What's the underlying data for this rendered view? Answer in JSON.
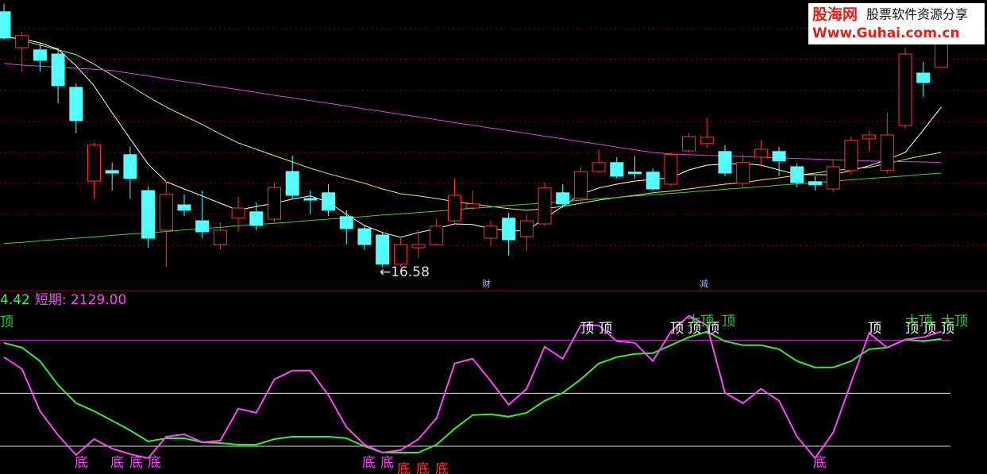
{
  "chart_data": [
    {
      "type": "candlestick",
      "categories": [
        null,
        null,
        null,
        null,
        null,
        null,
        null,
        null,
        null,
        null,
        null,
        null,
        null,
        null,
        null,
        null,
        null,
        null,
        null,
        null,
        null,
        null,
        null,
        null,
        null,
        null,
        null,
        null,
        null,
        null,
        null,
        null,
        null,
        null,
        null,
        null,
        null,
        null,
        null,
        null,
        null,
        null,
        null,
        null,
        null,
        null,
        null,
        null,
        null,
        null,
        null,
        null,
        null
      ],
      "open": [
        24.63,
        23.5,
        23.43,
        23.3,
        22.25,
        19.3,
        19.63,
        20.13,
        19.0,
        17.75,
        18.55,
        18.05,
        17.3,
        18.13,
        18.33,
        18.1,
        19.6,
        18.75,
        18.93,
        18.18,
        17.8,
        17.6,
        16.68,
        17.2,
        17.3,
        18.05,
        18.45,
        17.5,
        18.13,
        17.55,
        17.95,
        18.93,
        18.75,
        19.6,
        19.88,
        19.58,
        19.58,
        19.2,
        20.25,
        20.48,
        20.23,
        19.23,
        20.05,
        20.23,
        19.75,
        19.28,
        19.05,
        19.63,
        20.63,
        19.63,
        21.05,
        22.7,
        22.88
      ],
      "high": [
        24.88,
        24.0,
        23.63,
        23.5,
        22.38,
        20.5,
        19.88,
        20.38,
        19.13,
        19.3,
        18.88,
        19.0,
        18.0,
        18.8,
        18.63,
        19.25,
        20.1,
        19.0,
        19.2,
        18.38,
        17.93,
        17.68,
        17.5,
        17.75,
        18.13,
        19.38,
        19.0,
        18.05,
        18.3,
        18.25,
        19.25,
        19.2,
        19.75,
        20.3,
        20.05,
        20.08,
        19.7,
        20.2,
        20.8,
        21.3,
        20.43,
        20.13,
        20.6,
        20.38,
        19.85,
        19.45,
        20.0,
        20.7,
        20.88,
        21.45,
        23.5,
        23.05,
        24.0
      ],
      "low": [
        23.75,
        22.75,
        22.75,
        21.75,
        20.8,
        18.75,
        19.0,
        18.75,
        17.2,
        16.6,
        18.2,
        17.5,
        17.13,
        17.7,
        17.75,
        18.0,
        18.75,
        18.25,
        18.2,
        17.3,
        17.13,
        16.58,
        16.6,
        16.88,
        17.25,
        18.0,
        18.38,
        17.25,
        16.95,
        17.1,
        17.88,
        18.45,
        18.63,
        19.55,
        19.38,
        19.38,
        19.0,
        19.13,
        20.2,
        20.35,
        19.45,
        19.05,
        19.75,
        19.45,
        19.1,
        19.0,
        18.95,
        19.5,
        20.25,
        19.55,
        20.95,
        21.95,
        22.88
      ],
      "close": [
        23.8,
        23.88,
        23.1,
        22.3,
        21.2,
        20.43,
        19.55,
        19.38,
        17.5,
        18.88,
        18.38,
        17.7,
        17.75,
        18.45,
        17.9,
        19.1,
        18.85,
        18.7,
        18.38,
        17.8,
        17.3,
        16.68,
        17.3,
        17.3,
        17.88,
        18.85,
        18.58,
        17.88,
        17.45,
        18.05,
        19.08,
        18.58,
        19.6,
        19.88,
        19.45,
        19.53,
        19.05,
        20.13,
        20.7,
        20.68,
        19.55,
        19.88,
        20.3,
        19.93,
        19.25,
        19.18,
        19.75,
        20.58,
        20.75,
        20.75,
        23.3,
        22.4,
        23.63
      ],
      "up_color": "#ff3232",
      "down_color": "#54ffff",
      "series": [
        {
          "color": "#ffffff",
          "values": [
            23.83,
            23.78,
            23.65,
            23.45,
            22.93,
            22.3,
            21.45,
            20.63,
            19.83,
            19.28,
            19.05,
            18.83,
            18.6,
            18.38,
            18.5,
            18.6,
            18.73,
            18.83,
            18.63,
            18.25,
            17.9,
            17.68,
            17.53,
            17.68,
            17.8,
            17.95,
            17.93,
            17.8,
            17.73,
            17.73,
            18.13,
            18.5,
            18.88,
            19.08,
            19.2,
            19.3,
            19.35,
            19.4,
            19.65,
            19.8,
            19.83,
            19.85,
            19.8,
            19.65,
            19.5,
            19.5,
            19.5,
            19.63,
            19.78,
            19.98,
            20.2,
            20.9,
            21.63
          ]
        },
        {
          "color": "#e8e870",
          "values": [
            23.88,
            23.73,
            23.58,
            23.43,
            23.28,
            22.98,
            22.63,
            22.3,
            21.95,
            21.63,
            21.35,
            21.08,
            20.78,
            20.5,
            20.3,
            20.1,
            19.9,
            19.7,
            19.53,
            19.38,
            19.23,
            19.05,
            18.9,
            18.83,
            18.75,
            18.65,
            18.58,
            18.5,
            18.43,
            18.38,
            18.43,
            18.5,
            18.6,
            18.7,
            18.78,
            18.85,
            18.93,
            18.98,
            19.05,
            19.13,
            19.2,
            19.25,
            19.33,
            19.4,
            19.48,
            19.55,
            19.63,
            19.68,
            19.73,
            19.85,
            19.98,
            20.1,
            20.2
          ]
        },
        {
          "color": "#dd44dd",
          "values": [
            23.0,
            22.95,
            22.92,
            22.88,
            22.85,
            22.82,
            22.78,
            22.69,
            22.61,
            22.52,
            22.43,
            22.35,
            22.26,
            22.18,
            22.09,
            22.0,
            21.92,
            21.83,
            21.75,
            21.66,
            21.57,
            21.49,
            21.4,
            21.32,
            21.23,
            21.14,
            21.06,
            20.97,
            20.89,
            20.8,
            20.71,
            20.63,
            20.54,
            20.46,
            20.37,
            20.28,
            20.2,
            20.15,
            20.13,
            20.11,
            20.09,
            20.07,
            20.05,
            20.03,
            20.01,
            19.99,
            19.97,
            19.95,
            19.93,
            19.92,
            19.91,
            19.9,
            19.88
          ]
        },
        {
          "color": "#44cc44",
          "values": [
            17.33,
            17.37,
            17.42,
            17.46,
            17.5,
            17.54,
            17.59,
            17.63,
            17.67,
            17.71,
            17.76,
            17.8,
            17.84,
            17.89,
            17.93,
            17.97,
            18.01,
            18.06,
            18.1,
            18.14,
            18.18,
            18.23,
            18.27,
            18.31,
            18.35,
            18.4,
            18.44,
            18.48,
            18.53,
            18.57,
            18.61,
            18.65,
            18.7,
            18.74,
            18.78,
            18.83,
            18.87,
            18.91,
            18.95,
            19.0,
            19.04,
            19.08,
            19.12,
            19.17,
            19.21,
            19.25,
            19.29,
            19.34,
            19.38,
            19.42,
            19.46,
            19.51,
            19.55
          ]
        }
      ],
      "ylim": [
        16,
        25
      ],
      "gridlines": [
        24.1,
        23.13,
        22.15,
        21.18,
        20.2,
        19.23,
        18.25,
        17.28
      ],
      "grid_color": "#a00000",
      "annotations": [
        {
          "text": "←16.58",
          "color": "#e0e0e0"
        },
        {
          "text": "财",
          "color": "#a8b8ff"
        },
        {
          "text": "减",
          "color": "#a8b8ff"
        }
      ]
    },
    {
      "type": "line",
      "header": [
        {
          "text": "4.42",
          "color": "#33ff33"
        },
        {
          "text": "短期: 2129.00",
          "color": "#ff44ff"
        }
      ],
      "series": [
        {
          "color": "#ff44ff",
          "values": [
            77.3,
            68.3,
            36.5,
            18.4,
            3.4,
            15.4,
            8.2,
            4.0,
            1.0,
            17.2,
            19.0,
            13.0,
            14.2,
            38.3,
            35.3,
            60.5,
            67.1,
            67.1,
            48.5,
            24.4,
            11.2,
            5.2,
            7.0,
            15.4,
            31.1,
            72.5,
            76.1,
            59.3,
            41.3,
            53.3,
            85.1,
            76.1,
            101.4,
            101.4,
            89.4,
            88.1,
            74.3,
            96.6,
            108.6,
            101.4,
            50.3,
            42.5,
            53.3,
            44.3,
            17.2,
            1.0,
            20.2,
            58.1,
            95.4,
            84.5,
            90.6,
            92.4,
            96.6
          ]
        },
        {
          "color": "#33ee33",
          "values": [
            88.1,
            84.5,
            74.3,
            56.3,
            42.5,
            36.5,
            29.3,
            22.0,
            13.6,
            16.0,
            16.0,
            13.0,
            12.4,
            11.2,
            11.2,
            15.4,
            17.2,
            17.2,
            17.2,
            16.0,
            10.0,
            5.2,
            5.2,
            5.2,
            11.2,
            23.2,
            33.5,
            34.1,
            32.3,
            35.3,
            44.3,
            50.3,
            60.5,
            72.5,
            77.3,
            79.7,
            80.3,
            86.3,
            92.4,
            96.6,
            89.4,
            86.3,
            86.3,
            83.3,
            74.3,
            69.5,
            69.5,
            74.3,
            83.3,
            84.5,
            90.6,
            89.4,
            91.1
          ]
        }
      ],
      "ylim": [
        -5,
        115
      ],
      "ref_lines": [
        {
          "value": 90,
          "color": "#cc33cc"
        },
        {
          "value": 50,
          "color": "#dddddd"
        },
        {
          "value": 10,
          "color": "#dddddd"
        }
      ],
      "annotations": [
        {
          "text": "顶",
          "color": "#33cc33"
        },
        {
          "text": "底",
          "color": "#ff44ff"
        },
        {
          "text": "底",
          "color": "#ff44ff"
        },
        {
          "text": "底",
          "color": "#ff44ff"
        },
        {
          "text": "底",
          "color": "#ff44ff"
        },
        {
          "text": "底",
          "color": "#ff44ff"
        },
        {
          "text": "底",
          "color": "#ff44ff"
        },
        {
          "text": "底",
          "color": "#ff3333"
        },
        {
          "text": "底",
          "color": "#ff3333"
        },
        {
          "text": "底",
          "color": "#ff3333"
        },
        {
          "text": "顶",
          "color": "#ffffff"
        },
        {
          "text": "顶",
          "color": "#ffffff"
        },
        {
          "text": "顶",
          "color": "#ffffff"
        },
        {
          "text": "顶",
          "color": "#ffffff"
        },
        {
          "text": "顶",
          "color": "#ffffff"
        },
        {
          "text": "大顶",
          "color": "#33cc33"
        },
        {
          "text": "顶",
          "color": "#33cc33"
        },
        {
          "text": "底",
          "color": "#ff44ff"
        },
        {
          "text": "顶",
          "color": "#ffffff"
        },
        {
          "text": "顶",
          "color": "#ffffff"
        },
        {
          "text": "顶",
          "color": "#ffffff"
        },
        {
          "text": "顶",
          "color": "#ffffff"
        },
        {
          "text": "大顶",
          "color": "#33cc33"
        },
        {
          "text": "大顶",
          "color": "#33cc33"
        }
      ]
    }
  ],
  "logo": {
    "title": "股海网",
    "subtitle": "股票软件资源分享",
    "url": "Www.Guhai.com.cn"
  }
}
